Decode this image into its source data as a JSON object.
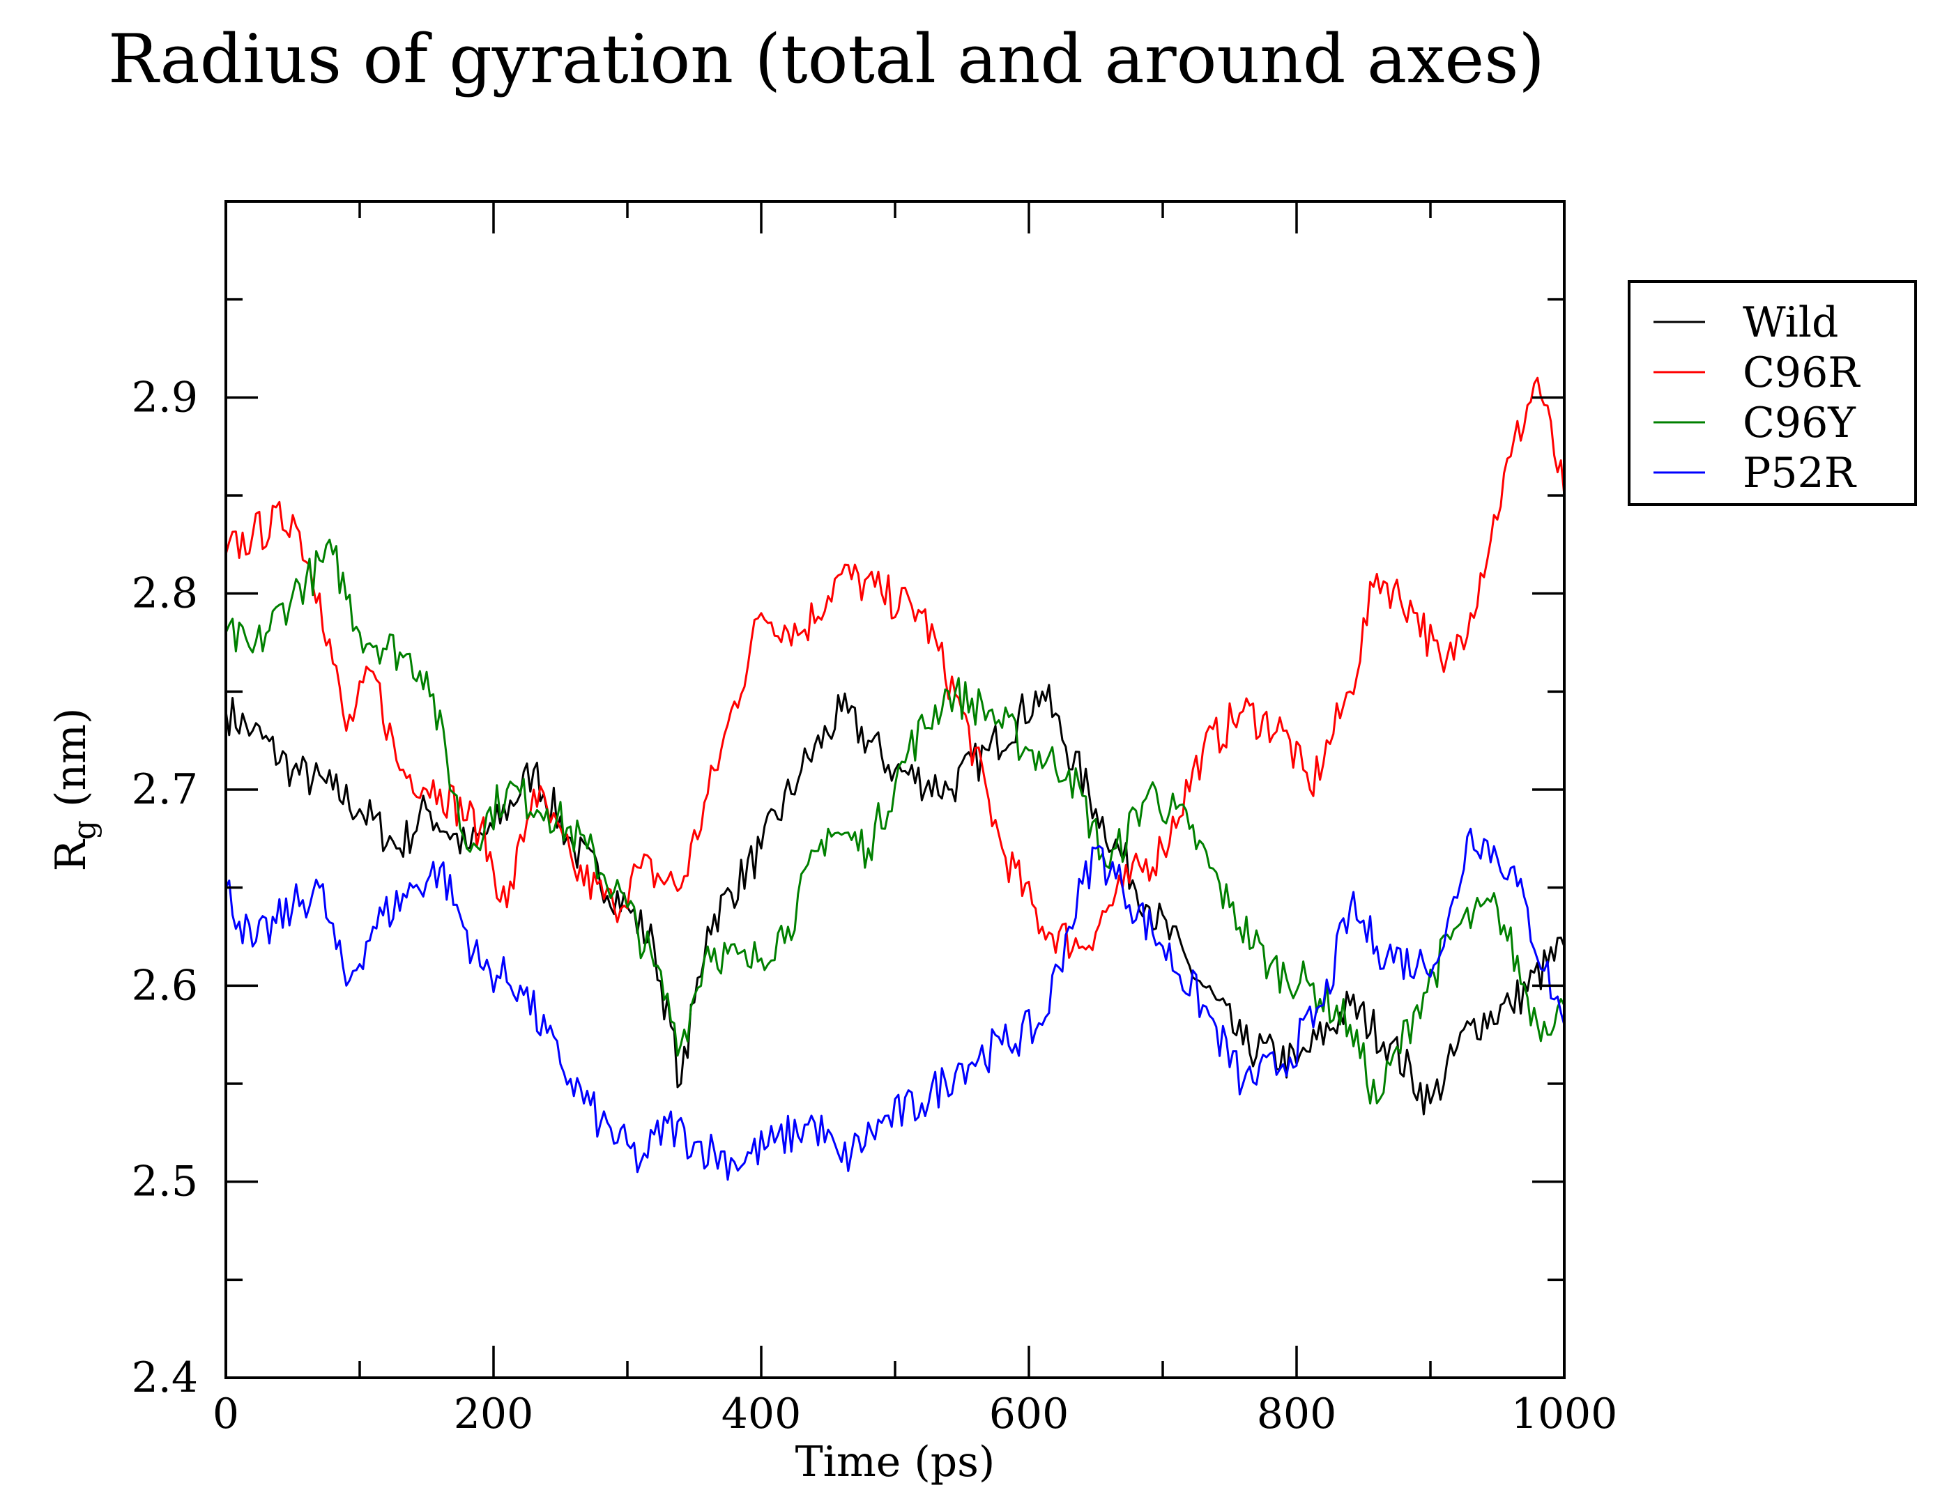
{
  "chart_data": {
    "type": "line",
    "title": "Radius of gyration (total and around axes)",
    "xlabel": "Time (ps)",
    "ylabel_main": "R",
    "ylabel_sub": "g",
    "ylabel_unit": " (nm)",
    "xlim": [
      0,
      1000
    ],
    "ylim": [
      2.4,
      3.0
    ],
    "xticks": [
      0,
      200,
      400,
      600,
      800,
      1000
    ],
    "xtick_labels": [
      "0",
      "200",
      "400",
      "600",
      "800",
      "1000"
    ],
    "yticks": [
      2.4,
      2.5,
      2.6,
      2.7,
      2.8,
      2.9
    ],
    "ytick_labels": [
      "2.4",
      "2.5",
      "2.6",
      "2.7",
      "2.8",
      "2.9"
    ],
    "grid": false,
    "legend_position": "outside-right-top",
    "series": [
      {
        "name": "Wild",
        "color": "#000000",
        "x": [
          0,
          20,
          50,
          80,
          100,
          130,
          150,
          180,
          200,
          230,
          260,
          300,
          320,
          340,
          360,
          400,
          430,
          460,
          500,
          540,
          570,
          610,
          650,
          690,
          720,
          760,
          800,
          840,
          870,
          900,
          930,
          960,
          1000
        ],
        "values": [
          2.74,
          2.73,
          2.71,
          2.7,
          2.69,
          2.67,
          2.69,
          2.67,
          2.68,
          2.71,
          2.67,
          2.64,
          2.62,
          2.55,
          2.63,
          2.67,
          2.71,
          2.74,
          2.71,
          2.7,
          2.72,
          2.75,
          2.69,
          2.64,
          2.61,
          2.57,
          2.56,
          2.59,
          2.57,
          2.54,
          2.58,
          2.59,
          2.62
        ]
      },
      {
        "name": "C96R",
        "color": "#ff0000",
        "x": [
          0,
          20,
          50,
          70,
          90,
          110,
          130,
          160,
          190,
          210,
          230,
          260,
          290,
          310,
          340,
          370,
          400,
          430,
          460,
          490,
          520,
          550,
          580,
          610,
          640,
          670,
          700,
          730,
          760,
          790,
          810,
          840,
          860,
          890,
          910,
          930,
          960,
          980,
          1000
        ],
        "values": [
          2.82,
          2.83,
          2.84,
          2.8,
          2.73,
          2.76,
          2.71,
          2.7,
          2.68,
          2.64,
          2.7,
          2.66,
          2.64,
          2.66,
          2.65,
          2.72,
          2.79,
          2.78,
          2.81,
          2.8,
          2.79,
          2.74,
          2.67,
          2.63,
          2.62,
          2.65,
          2.67,
          2.72,
          2.74,
          2.73,
          2.7,
          2.75,
          2.81,
          2.79,
          2.76,
          2.79,
          2.87,
          2.91,
          2.85
        ]
      },
      {
        "name": "C96Y",
        "color": "#008000",
        "x": [
          0,
          20,
          50,
          80,
          100,
          130,
          150,
          180,
          210,
          240,
          270,
          300,
          320,
          340,
          360,
          390,
          420,
          450,
          480,
          510,
          540,
          570,
          600,
          630,
          660,
          690,
          720,
          750,
          780,
          810,
          840,
          860,
          890,
          920,
          950,
          980,
          1000
        ],
        "values": [
          2.78,
          2.77,
          2.8,
          2.82,
          2.78,
          2.77,
          2.76,
          2.67,
          2.7,
          2.69,
          2.67,
          2.64,
          2.61,
          2.57,
          2.62,
          2.61,
          2.63,
          2.68,
          2.67,
          2.72,
          2.75,
          2.74,
          2.72,
          2.71,
          2.66,
          2.7,
          2.68,
          2.64,
          2.61,
          2.6,
          2.58,
          2.54,
          2.59,
          2.63,
          2.64,
          2.58,
          2.59
        ]
      },
      {
        "name": "P52R",
        "color": "#0000ff",
        "x": [
          0,
          20,
          50,
          70,
          90,
          110,
          140,
          160,
          190,
          220,
          250,
          280,
          310,
          330,
          350,
          380,
          410,
          440,
          460,
          490,
          520,
          550,
          580,
          610,
          630,
          650,
          670,
          700,
          730,
          760,
          790,
          820,
          840,
          860,
          890,
          910,
          930,
          960,
          1000
        ],
        "values": [
          2.65,
          2.62,
          2.64,
          2.65,
          2.6,
          2.63,
          2.65,
          2.66,
          2.61,
          2.6,
          2.56,
          2.53,
          2.51,
          2.53,
          2.52,
          2.51,
          2.52,
          2.53,
          2.51,
          2.53,
          2.54,
          2.56,
          2.57,
          2.58,
          2.63,
          2.67,
          2.65,
          2.62,
          2.59,
          2.55,
          2.56,
          2.59,
          2.64,
          2.62,
          2.61,
          2.62,
          2.68,
          2.66,
          2.58
        ]
      }
    ]
  }
}
